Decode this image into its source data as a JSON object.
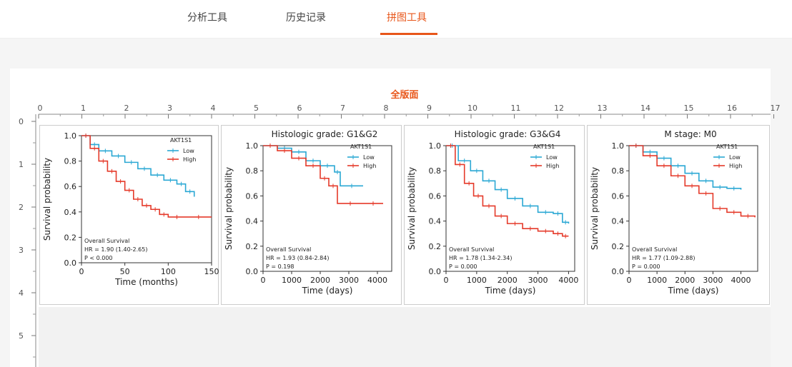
{
  "tabs": [
    {
      "label": "分析工具",
      "active": false
    },
    {
      "label": "历史记录",
      "active": false
    },
    {
      "label": "拼图工具",
      "active": true
    }
  ],
  "ruler": {
    "title": "全版面",
    "top_ticks": [
      "0",
      "1",
      "2",
      "3",
      "4",
      "5",
      "6",
      "7",
      "8",
      "9",
      "10",
      "11",
      "12",
      "13",
      "14",
      "15",
      "16",
      "17"
    ],
    "left_ticks": [
      "0",
      "1",
      "2",
      "3",
      "4",
      "5"
    ]
  },
  "colors": {
    "accent": "#e8561a",
    "low": "#2ba8d4",
    "high": "#e53a2a"
  },
  "panels": [
    {
      "title": "",
      "legend_title": "AKT1S1",
      "legend": [
        "Low",
        "High"
      ],
      "xlabel": "Time (months)",
      "ylabel": "Survival probability",
      "xticks": [
        "0",
        "50",
        "100",
        "150"
      ],
      "yticks": [
        "1.0",
        "0.8",
        "0.6",
        "0.4",
        "0.2",
        "0.0"
      ],
      "stats": [
        "Overall Survival",
        "HR = 1.90 (1.40-2.65)",
        "P < 0.000"
      ]
    },
    {
      "title": "Histologic grade: G1&G2",
      "legend_title": "AKT1S1",
      "legend": [
        "Low",
        "High"
      ],
      "xlabel": "Time (days)",
      "ylabel": "Survival probability",
      "xticks": [
        "0",
        "1000",
        "2000",
        "3000",
        "4000"
      ],
      "yticks": [
        "1.0",
        "0.8",
        "0.6",
        "0.4",
        "0.2",
        "0.0"
      ],
      "stats": [
        "Overall Survival",
        "HR = 1.93 (0.84-2.84)",
        "P = 0.198"
      ]
    },
    {
      "title": "Histologic grade: G3&G4",
      "legend_title": "AKT1S1",
      "legend": [
        "Low",
        "High"
      ],
      "xlabel": "Time (days)",
      "ylabel": "Survival probability",
      "xticks": [
        "0",
        "1000",
        "2000",
        "3000",
        "4000"
      ],
      "yticks": [
        "1.0",
        "0.8",
        "0.6",
        "0.4",
        "0.2",
        "0.0"
      ],
      "stats": [
        "Overall Survival",
        "HR = 1.78 (1.34-2.34)",
        "P = 0.000"
      ]
    },
    {
      "title": "M stage: M0",
      "legend_title": "AKT1S1",
      "legend": [
        "Low",
        "High"
      ],
      "xlabel": "Time (days)",
      "ylabel": "Survival probability",
      "xticks": [
        "0",
        "1000",
        "2000",
        "3000",
        "4000"
      ],
      "yticks": [
        "1.0",
        "0.8",
        "0.6",
        "0.4",
        "0.2",
        "0.0"
      ],
      "stats": [
        "Overall Survival",
        "HR = 1.77 (1.09-2.88)",
        "P = 0.000"
      ]
    }
  ],
  "curves": [
    {
      "low": [
        [
          0,
          1.0
        ],
        [
          10,
          0.93
        ],
        [
          20,
          0.88
        ],
        [
          35,
          0.84
        ],
        [
          50,
          0.79
        ],
        [
          65,
          0.74
        ],
        [
          80,
          0.69
        ],
        [
          95,
          0.65
        ],
        [
          110,
          0.62
        ],
        [
          120,
          0.56
        ],
        [
          130,
          0.52
        ]
      ],
      "high": [
        [
          0,
          1.0
        ],
        [
          10,
          0.9
        ],
        [
          20,
          0.8
        ],
        [
          30,
          0.72
        ],
        [
          40,
          0.64
        ],
        [
          50,
          0.57
        ],
        [
          60,
          0.5
        ],
        [
          70,
          0.45
        ],
        [
          80,
          0.42
        ],
        [
          90,
          0.38
        ],
        [
          100,
          0.36
        ],
        [
          120,
          0.36
        ],
        [
          150,
          0.36
        ]
      ]
    },
    {
      "low": [
        [
          0,
          1.0
        ],
        [
          500,
          0.98
        ],
        [
          1000,
          0.95
        ],
        [
          1500,
          0.88
        ],
        [
          2000,
          0.84
        ],
        [
          2500,
          0.79
        ],
        [
          2700,
          0.68
        ],
        [
          3500,
          0.68
        ]
      ],
      "high": [
        [
          0,
          1.0
        ],
        [
          500,
          0.96
        ],
        [
          1000,
          0.9
        ],
        [
          1500,
          0.84
        ],
        [
          2000,
          0.74
        ],
        [
          2300,
          0.68
        ],
        [
          2600,
          0.54
        ],
        [
          3500,
          0.54
        ],
        [
          4200,
          0.54
        ]
      ]
    },
    {
      "low": [
        [
          0,
          1.0
        ],
        [
          400,
          0.88
        ],
        [
          800,
          0.8
        ],
        [
          1200,
          0.72
        ],
        [
          1600,
          0.65
        ],
        [
          2000,
          0.58
        ],
        [
          2500,
          0.52
        ],
        [
          3000,
          0.47
        ],
        [
          3500,
          0.46
        ],
        [
          3800,
          0.39
        ],
        [
          4000,
          0.38
        ]
      ],
      "high": [
        [
          0,
          1.0
        ],
        [
          300,
          0.85
        ],
        [
          600,
          0.7
        ],
        [
          900,
          0.6
        ],
        [
          1200,
          0.52
        ],
        [
          1600,
          0.44
        ],
        [
          2000,
          0.38
        ],
        [
          2500,
          0.34
        ],
        [
          3000,
          0.32
        ],
        [
          3500,
          0.3
        ],
        [
          3800,
          0.28
        ],
        [
          4000,
          0.28
        ]
      ]
    },
    {
      "low": [
        [
          0,
          1.0
        ],
        [
          500,
          0.95
        ],
        [
          1000,
          0.9
        ],
        [
          1500,
          0.84
        ],
        [
          2000,
          0.78
        ],
        [
          2500,
          0.72
        ],
        [
          3000,
          0.67
        ],
        [
          3500,
          0.66
        ],
        [
          4000,
          0.65
        ]
      ],
      "high": [
        [
          0,
          1.0
        ],
        [
          500,
          0.92
        ],
        [
          1000,
          0.84
        ],
        [
          1500,
          0.76
        ],
        [
          2000,
          0.68
        ],
        [
          2500,
          0.62
        ],
        [
          3000,
          0.5
        ],
        [
          3500,
          0.47
        ],
        [
          4000,
          0.44
        ],
        [
          4500,
          0.43
        ]
      ]
    }
  ],
  "xmax": [
    150,
    4500,
    4200,
    4600
  ]
}
